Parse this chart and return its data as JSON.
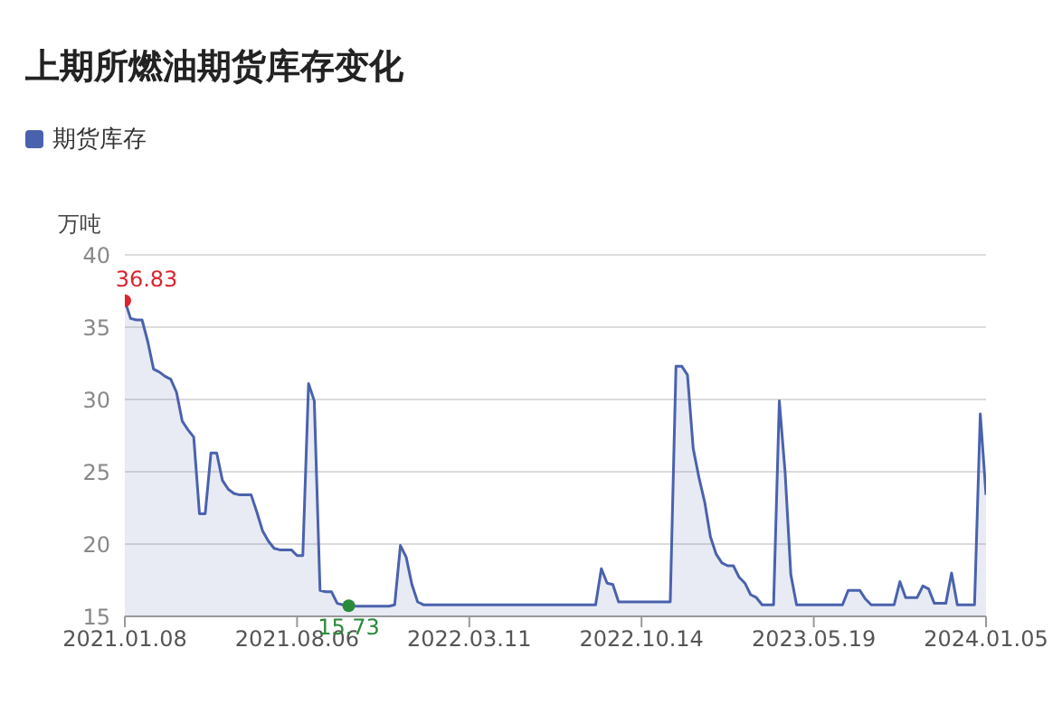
{
  "chart_data": {
    "type": "area",
    "title": "上期所燃油期货库存变化",
    "ylabel": "万吨",
    "legend": "top left",
    "grid": "y",
    "marker": "none",
    "ylim": [
      15,
      40
    ],
    "yticks": [
      15,
      20,
      25,
      30,
      35,
      40
    ],
    "categories": [
      "2021.01.08",
      null,
      null,
      null,
      null,
      null,
      null,
      null,
      null,
      null,
      null,
      null,
      null,
      null,
      null,
      null,
      null,
      null,
      null,
      null,
      null,
      null,
      null,
      null,
      null,
      null,
      null,
      null,
      null,
      null,
      "2021.08.06",
      null,
      null,
      null,
      null,
      null,
      null,
      null,
      null,
      null,
      null,
      null,
      null,
      null,
      null,
      null,
      null,
      null,
      null,
      null,
      null,
      null,
      null,
      null,
      null,
      null,
      null,
      null,
      null,
      null,
      "2022.03.11",
      null,
      null,
      null,
      null,
      null,
      null,
      null,
      null,
      null,
      null,
      null,
      null,
      null,
      null,
      null,
      null,
      null,
      null,
      null,
      null,
      null,
      null,
      null,
      null,
      null,
      null,
      null,
      null,
      null,
      "2022.10.14",
      null,
      null,
      null,
      null,
      null,
      null,
      null,
      null,
      null,
      null,
      null,
      null,
      null,
      null,
      null,
      null,
      null,
      null,
      null,
      null,
      null,
      null,
      null,
      null,
      null,
      null,
      null,
      null,
      null,
      "2023.05.19",
      null,
      null,
      null,
      null,
      null,
      null,
      null,
      null,
      null,
      null,
      null,
      null,
      null,
      null,
      null,
      null,
      null,
      null,
      null,
      null,
      null,
      null,
      null,
      null,
      null,
      null,
      null,
      null,
      null,
      "2024.01.05"
    ],
    "series": [
      {
        "name": "期货库存",
        "color": "#4a62ad",
        "values": [
          36.83,
          35.6,
          35.5,
          35.5,
          34,
          32.1,
          31.9,
          31.6,
          31.4,
          30.5,
          28.5,
          27.9,
          27.4,
          22.1,
          22.1,
          26.3,
          26.3,
          24.4,
          23.8,
          23.5,
          23.4,
          23.4,
          23.4,
          22.2,
          20.9,
          20.2,
          19.7,
          19.6,
          19.6,
          19.6,
          19.2,
          19.2,
          31.1,
          29.9,
          16.8,
          16.7,
          16.7,
          15.9,
          15.8,
          15.73,
          15.7,
          15.7,
          15.7,
          15.7,
          15.7,
          15.7,
          15.7,
          15.8,
          19.9,
          19.1,
          17.2,
          16.0,
          15.8,
          15.8,
          15.8,
          15.8,
          15.8,
          15.8,
          15.8,
          15.8,
          15.8,
          15.8,
          15.8,
          15.8,
          15.8,
          15.8,
          15.8,
          15.8,
          15.8,
          15.8,
          15.8,
          15.8,
          15.8,
          15.8,
          15.8,
          15.8,
          15.8,
          15.8,
          15.8,
          15.8,
          15.8,
          15.8,
          15.8,
          18.3,
          17.3,
          17.2,
          16.0,
          16.0,
          16.0,
          16.0,
          16.0,
          16.0,
          16.0,
          16.0,
          16.0,
          16.0,
          32.3,
          32.3,
          31.7,
          26.6,
          24.6,
          22.9,
          20.5,
          19.3,
          18.7,
          18.5,
          18.5,
          17.7,
          17.3,
          16.5,
          16.3,
          15.8,
          15.8,
          15.8,
          29.9,
          25,
          17.9,
          15.8,
          15.8,
          15.8,
          15.8,
          15.8,
          15.8,
          15.8,
          15.8,
          15.8,
          16.8,
          16.8,
          16.8,
          16.2,
          15.8,
          15.8,
          15.8,
          15.8,
          15.8,
          17.4,
          16.3,
          16.3,
          16.3,
          17.1,
          16.9,
          15.9,
          15.9,
          15.9,
          18.0,
          15.8,
          15.8,
          15.8,
          15.8,
          29.0,
          23.4
        ],
        "value_labels": [
          "36.83",
          null,
          null,
          null,
          null,
          null,
          null,
          null,
          null,
          null,
          null,
          null,
          null,
          null,
          null,
          null,
          null,
          null,
          null,
          null,
          null,
          null,
          null,
          null,
          null,
          null,
          null,
          null,
          null,
          null,
          null,
          null,
          null,
          null,
          null,
          null,
          null,
          null,
          null,
          "15.73",
          null,
          null,
          null,
          null,
          null,
          null,
          null,
          null,
          null,
          null,
          null,
          null,
          null,
          null,
          null,
          null,
          null,
          null,
          null,
          null,
          null,
          null,
          null,
          null,
          null,
          null,
          null,
          null,
          null,
          null,
          null,
          null,
          null,
          null,
          null,
          null,
          null,
          null,
          null,
          null,
          null,
          null,
          null,
          null,
          null,
          null,
          null,
          null,
          null,
          null,
          null,
          null,
          null,
          null,
          null,
          null,
          null,
          null,
          null,
          null,
          null,
          null,
          null,
          null,
          null,
          null,
          null,
          null,
          null,
          null,
          null,
          null,
          null,
          null,
          null,
          null,
          null,
          null,
          null,
          null,
          null,
          null,
          null,
          null,
          null,
          null,
          null,
          null,
          null,
          null,
          null,
          null,
          null,
          null,
          null,
          null,
          null,
          null,
          null,
          null,
          null,
          null,
          null,
          null,
          null,
          null,
          null,
          null,
          null,
          null,
          null
        ]
      }
    ]
  }
}
